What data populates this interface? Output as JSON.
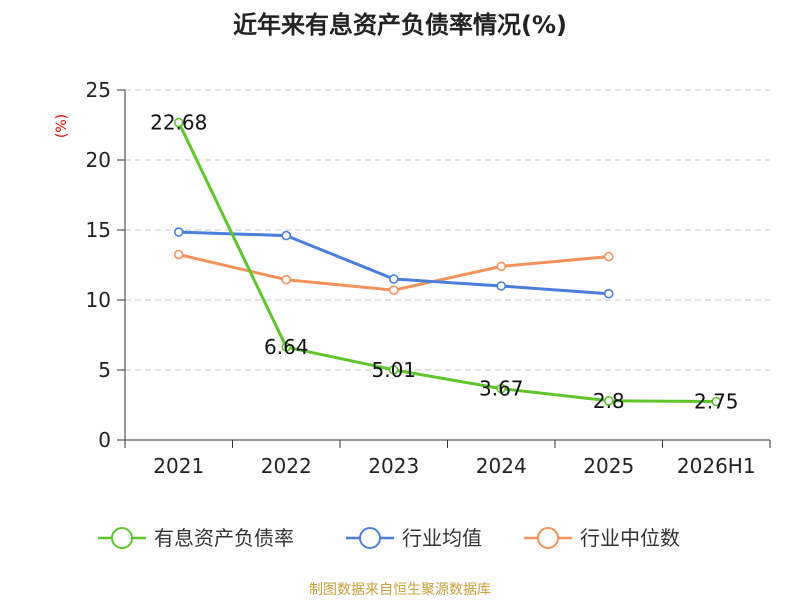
{
  "chart_data": {
    "type": "line",
    "title": "近年来有息资产负债率情况(%)",
    "ylabel": "(%)",
    "categories": [
      "2021",
      "2022",
      "2023",
      "2024",
      "2025",
      "2026H1"
    ],
    "ylim": [
      0,
      25
    ],
    "yticks": [
      0,
      5,
      10,
      15,
      20,
      25
    ],
    "grid": true,
    "legend_position": "bottom",
    "series": [
      {
        "name": "有息资产负债率",
        "color": "#5ec62b",
        "values": [
          22.68,
          6.64,
          5.01,
          3.67,
          2.8,
          2.75
        ],
        "labels": [
          "22.68",
          "6.64",
          "5.01",
          "3.67",
          "2.8",
          "2.75"
        ]
      },
      {
        "name": "行业均值",
        "color": "#4a7fdd",
        "values": [
          14.85,
          14.6,
          11.5,
          11.0,
          10.45,
          null
        ]
      },
      {
        "name": "行业中位数",
        "color": "#f5915a",
        "values": [
          13.25,
          11.45,
          10.7,
          12.4,
          13.1,
          null
        ]
      }
    ],
    "source": "制图数据来自恒生聚源数据库"
  }
}
